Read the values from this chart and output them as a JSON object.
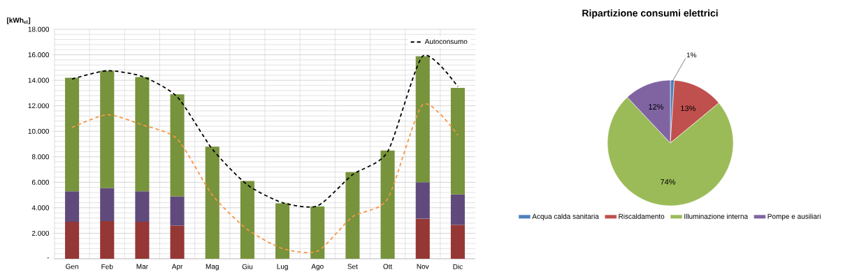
{
  "chart_data": [
    {
      "type": "bar",
      "stacked": true,
      "ylabel": "[kWh$_{el}$]",
      "categories": [
        "Gen",
        "Feb",
        "Mar",
        "Apr",
        "Mag",
        "Giu",
        "Lug",
        "Ago",
        "Set",
        "Ott",
        "Nov",
        "Dic"
      ],
      "ylim": [
        0,
        18000
      ],
      "yticks": [
        {
          "value": 0,
          "label": "-"
        },
        {
          "value": 2000,
          "label": "2.000"
        },
        {
          "value": 4000,
          "label": "4.000"
        },
        {
          "value": 6000,
          "label": "6.000"
        },
        {
          "value": 8000,
          "label": "8.000"
        },
        {
          "value": 10000,
          "label": "10.000"
        },
        {
          "value": 12000,
          "label": "12.000"
        },
        {
          "value": 14000,
          "label": "14.000"
        },
        {
          "value": 16000,
          "label": "16.000"
        },
        {
          "value": 18000,
          "label": "18.000"
        }
      ],
      "grid": true,
      "legend": "top right",
      "series": [
        {
          "color": "#953735",
          "values": [
            2900,
            2950,
            2900,
            2600,
            null,
            null,
            null,
            null,
            null,
            null,
            3150,
            2650
          ]
        },
        {
          "color": "#604a7b",
          "values": [
            2400,
            2600,
            2400,
            2300,
            null,
            null,
            null,
            null,
            null,
            null,
            2850,
            2400
          ]
        },
        {
          "color": "#77933c",
          "values": [
            8900,
            9200,
            8950,
            8000,
            8800,
            6100,
            4350,
            4100,
            6800,
            8500,
            9900,
            8350
          ]
        },
        {
          "type": "line",
          "name": "Autoconsumo",
          "color": "#000000",
          "line_style": "dashed",
          "values": [
            14100,
            14750,
            14300,
            12700,
            8600,
            5800,
            4400,
            4150,
            6600,
            8400,
            15900,
            13500
          ]
        },
        {
          "type": "line",
          "color": "#f79646",
          "line_style": "dashed",
          "values": [
            10300,
            11300,
            10500,
            9400,
            5000,
            2300,
            800,
            600,
            3300,
            4700,
            12100,
            9700
          ]
        }
      ]
    },
    {
      "type": "pie",
      "title": "Ripartizione consumi elettrici",
      "categories": [
        "Acqua calda sanitaria",
        "Riscaldamento",
        "Illuminazione interna",
        "Pompe e ausiliari"
      ],
      "values": [
        1,
        13,
        74,
        12
      ],
      "colors": [
        "#4f81bd",
        "#c0504d",
        "#9bbb59",
        "#8064a2"
      ],
      "value_labels": [
        "1%",
        "13%",
        "74%",
        "12%"
      ],
      "legend": "bottom"
    }
  ]
}
